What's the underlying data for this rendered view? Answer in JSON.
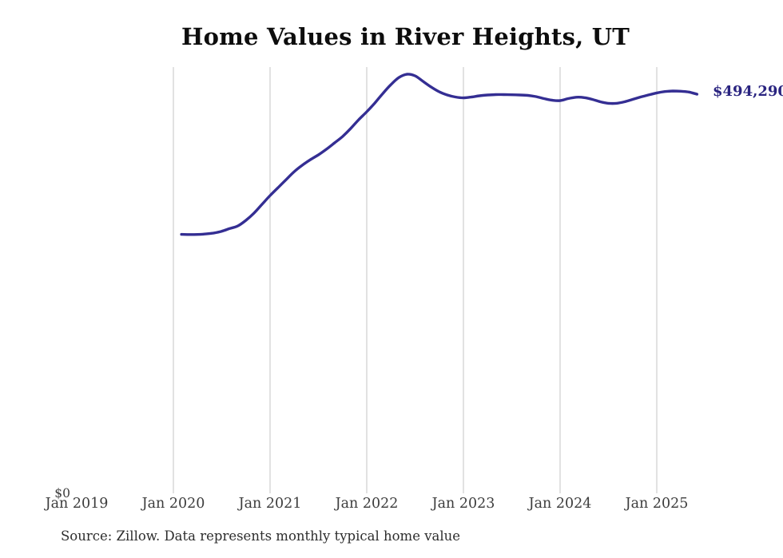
{
  "source_note": "Source: Zillow. Data represents monthly typical home value",
  "colors": {
    "background": "#ffffff",
    "line": "#342e93",
    "end_label_text": "#2a2480",
    "gridline": "#c6c6c6",
    "title_text": "#0d0d0d",
    "axis_text": "#3c3c3c",
    "source_text": "#2d2d2d"
  },
  "chart_data": {
    "type": "line",
    "title": "Home Values in River Heights, UT",
    "series_name": "Monthly typical home value",
    "units": "USD",
    "legend": "none",
    "grid": "vertical-only",
    "y_zero_label": "$0",
    "end_value_label": "$494,290",
    "end_value": 494290,
    "ylim": [
      0,
      527000
    ],
    "x_axis_range": [
      "Jan 2019",
      "Dec 2025"
    ],
    "x_ticks": [
      {
        "label": "Jan 2019",
        "year": 2019,
        "gridline": false
      },
      {
        "label": "Jan 2020",
        "year": 2020,
        "gridline": true
      },
      {
        "label": "Jan 2021",
        "year": 2021,
        "gridline": true
      },
      {
        "label": "Jan 2022",
        "year": 2022,
        "gridline": true
      },
      {
        "label": "Jan 2023",
        "year": 2023,
        "gridline": true
      },
      {
        "label": "Jan 2024",
        "year": 2024,
        "gridline": true
      },
      {
        "label": "Jan 2025",
        "year": 2025,
        "gridline": true
      }
    ],
    "x": [
      "2020-02",
      "2020-03",
      "2020-04",
      "2020-05",
      "2020-06",
      "2020-07",
      "2020-08",
      "2020-09",
      "2020-10",
      "2020-11",
      "2020-12",
      "2021-01",
      "2021-02",
      "2021-03",
      "2021-04",
      "2021-05",
      "2021-06",
      "2021-07",
      "2021-08",
      "2021-09",
      "2021-10",
      "2021-11",
      "2021-12",
      "2022-01",
      "2022-02",
      "2022-03",
      "2022-04",
      "2022-05",
      "2022-06",
      "2022-07",
      "2022-08",
      "2022-09",
      "2022-10",
      "2022-11",
      "2022-12",
      "2023-01",
      "2023-02",
      "2023-03",
      "2023-04",
      "2023-05",
      "2023-06",
      "2023-07",
      "2023-08",
      "2023-09",
      "2023-10",
      "2023-11",
      "2023-12",
      "2024-01",
      "2024-02",
      "2024-03",
      "2024-04",
      "2024-05",
      "2024-06",
      "2024-07",
      "2024-08",
      "2024-09",
      "2024-10",
      "2024-11",
      "2024-12",
      "2025-01",
      "2025-02",
      "2025-03",
      "2025-04",
      "2025-05",
      "2025-06"
    ],
    "values": [
      321400,
      321200,
      321300,
      321900,
      323100,
      325200,
      328600,
      331800,
      338700,
      347500,
      358400,
      369200,
      379100,
      389000,
      398800,
      406700,
      413500,
      419500,
      426400,
      434200,
      442100,
      451900,
      462800,
      472600,
      483400,
      495200,
      506100,
      514900,
      518900,
      516900,
      510000,
      503100,
      497200,
      493300,
      490800,
      489800,
      490800,
      492300,
      493300,
      493800,
      493800,
      493600,
      493300,
      492800,
      491300,
      488900,
      486900,
      486400,
      488900,
      490500,
      490100,
      487900,
      484900,
      483100,
      483100,
      484900,
      487900,
      490800,
      493400,
      495900,
      497500,
      498200,
      497900,
      496900,
      494290
    ]
  }
}
